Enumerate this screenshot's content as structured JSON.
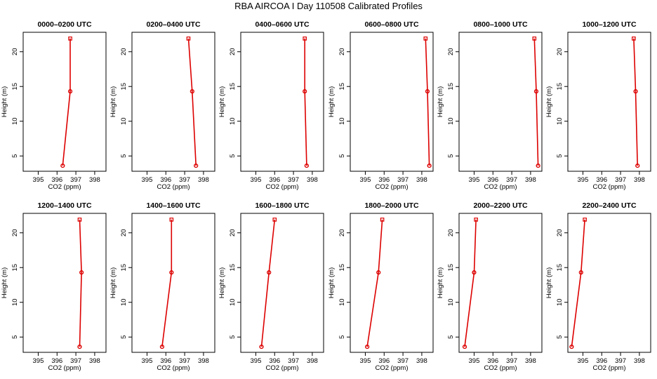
{
  "title": "RBA AIRCOA I  Day 110508  Calibrated Profiles",
  "axes": {
    "xlabel": "CO2 (ppm)",
    "ylabel": "Height (m)",
    "xlim": [
      394.2,
      398.6
    ],
    "ylim": [
      2.8,
      22.8
    ],
    "xticks": [
      395,
      396,
      397,
      398
    ],
    "yticks": [
      5,
      10,
      15,
      20
    ],
    "grid": false
  },
  "colors": {
    "profile": "#dd0000",
    "axis": "#000000"
  },
  "chart_data": [
    {
      "type": "line",
      "title": "0000–0200 UTC",
      "x": [
        396.3,
        396.7,
        396.7
      ],
      "y": [
        3.6,
        14.3,
        21.9
      ]
    },
    {
      "type": "line",
      "title": "0200–0400 UTC",
      "x": [
        397.6,
        397.4,
        397.2
      ],
      "y": [
        3.6,
        14.3,
        21.9
      ]
    },
    {
      "type": "line",
      "title": "0400–0600 UTC",
      "x": [
        397.7,
        397.6,
        397.6
      ],
      "y": [
        3.6,
        14.3,
        21.9
      ]
    },
    {
      "type": "line",
      "title": "0600–0800 UTC",
      "x": [
        398.4,
        398.3,
        398.2
      ],
      "y": [
        3.6,
        14.3,
        21.9
      ]
    },
    {
      "type": "line",
      "title": "0800–1000 UTC",
      "x": [
        398.4,
        398.3,
        398.2
      ],
      "y": [
        3.6,
        14.3,
        21.9
      ]
    },
    {
      "type": "line",
      "title": "1000–1200 UTC",
      "x": [
        397.9,
        397.8,
        397.7
      ],
      "y": [
        3.6,
        14.3,
        21.9
      ]
    },
    {
      "type": "line",
      "title": "1200–1400 UTC",
      "x": [
        397.2,
        397.3,
        397.2
      ],
      "y": [
        3.6,
        14.3,
        21.9
      ]
    },
    {
      "type": "line",
      "title": "1400–1600 UTC",
      "x": [
        395.8,
        396.3,
        396.3
      ],
      "y": [
        3.6,
        14.3,
        21.9
      ]
    },
    {
      "type": "line",
      "title": "1600–1800 UTC",
      "x": [
        395.3,
        395.7,
        396.0
      ],
      "y": [
        3.6,
        14.3,
        21.9
      ]
    },
    {
      "type": "line",
      "title": "1800–2000 UTC",
      "x": [
        395.1,
        395.7,
        395.9
      ],
      "y": [
        3.6,
        14.3,
        21.9
      ]
    },
    {
      "type": "line",
      "title": "2000–2200 UTC",
      "x": [
        394.5,
        395.0,
        395.1
      ],
      "y": [
        3.6,
        14.3,
        21.9
      ]
    },
    {
      "type": "line",
      "title": "2200–2400 UTC",
      "x": [
        394.4,
        394.9,
        395.1
      ],
      "y": [
        3.6,
        14.3,
        21.9
      ]
    }
  ]
}
